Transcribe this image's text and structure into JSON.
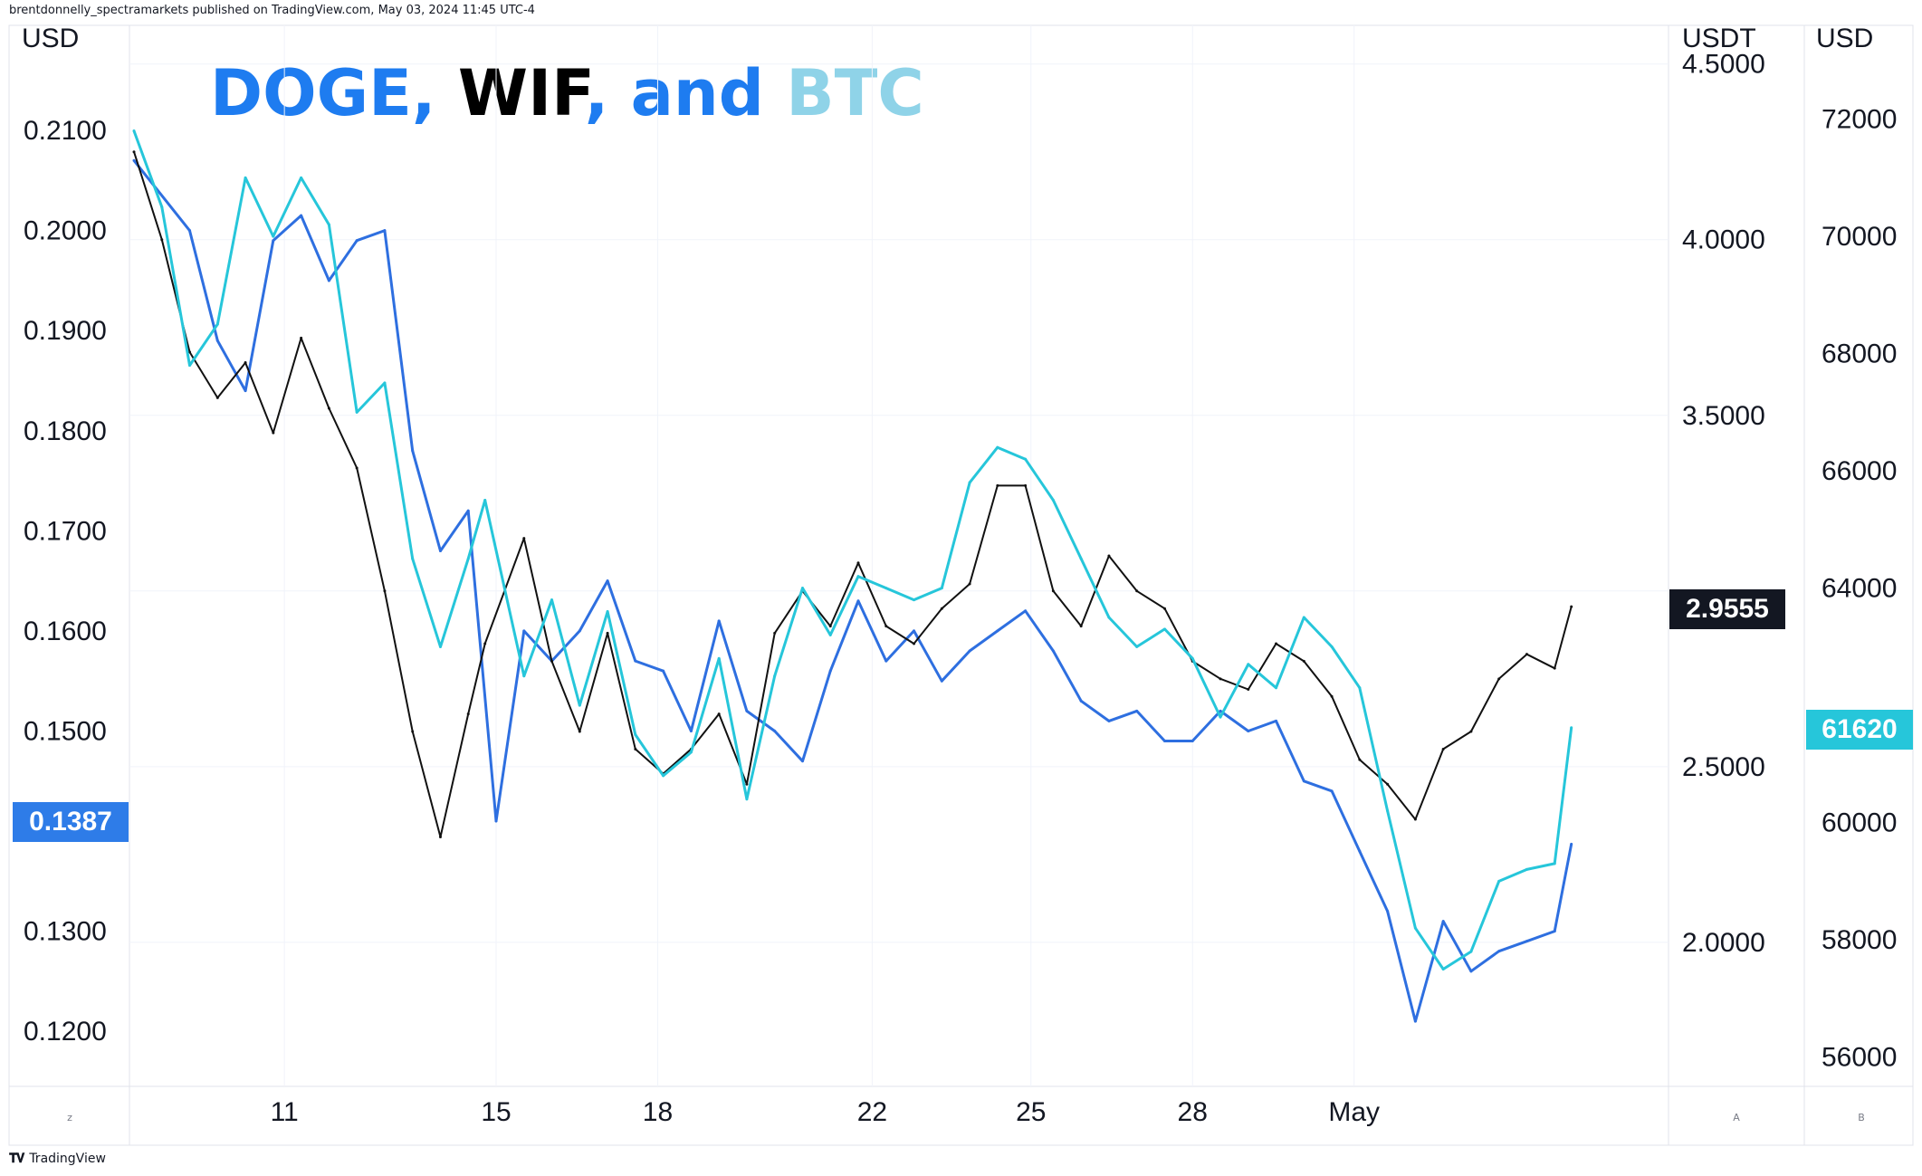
{
  "header": {
    "attribution": "brentdonnelly_spectramarkets published on TradingView.com, May 03, 2024 11:45 UTC-4"
  },
  "footer": {
    "brand": "TradingView"
  },
  "title_parts": [
    {
      "text": "DOGE",
      "color": "#1e7cf0"
    },
    {
      "text": ", ",
      "color": "#1e7cf0"
    },
    {
      "text": "WIF",
      "color": "#000000"
    },
    {
      "text": ", and ",
      "color": "#1e7cf0"
    },
    {
      "text": "BTC",
      "color": "#8fd3e8"
    }
  ],
  "axes": {
    "left_unit": "USD",
    "mid_unit": "USDT",
    "right_unit": "USD",
    "left_ticks": [
      "0.2100",
      "0.2000",
      "0.1900",
      "0.1800",
      "0.1700",
      "0.1600",
      "0.1500",
      "0.1300",
      "0.1200"
    ],
    "mid_ticks": [
      "4.5000",
      "4.0000",
      "3.5000",
      "2.5000",
      "2.0000"
    ],
    "right_ticks": [
      "72000",
      "70000",
      "68000",
      "66000",
      "64000",
      "60000",
      "58000",
      "56000"
    ],
    "x_ticks": [
      "11",
      "15",
      "18",
      "22",
      "25",
      "28",
      "May"
    ],
    "mini_buttons": {
      "left": "z",
      "mid": "A",
      "right": "B"
    }
  },
  "badges": {
    "doge": {
      "text": "0.1387",
      "color": "#2e7ce8"
    },
    "wif": {
      "text": "2.9555",
      "color": "#131722"
    },
    "btc": {
      "text": "61620",
      "color": "#26c6da"
    }
  },
  "chart_data": {
    "type": "line",
    "title": "DOGE, WIF, and BTC",
    "x_labels": [
      "11",
      "15",
      "18",
      "22",
      "25",
      "28",
      "May"
    ],
    "series": [
      {
        "name": "DOGE",
        "unit": "USD",
        "color": "#2e6fe0",
        "ylim": [
          0.1145,
          0.2205
        ],
        "x": [
          0,
          1,
          1.5,
          2,
          2.5,
          3,
          3.5,
          4,
          4.5,
          5,
          5.5,
          6,
          6.5,
          7,
          7.5,
          8,
          8.5,
          9,
          9.5,
          10,
          10.5,
          11,
          11.5,
          12,
          12.5,
          13,
          13.5,
          14,
          14.5,
          15,
          15.5,
          16,
          16.5,
          17,
          17.5,
          18,
          18.5,
          19,
          19.5,
          20,
          20.5,
          21,
          21.5,
          22,
          22.5,
          23,
          23.5,
          24,
          24.5,
          25,
          25.5,
          25.8
        ],
        "values": [
          0.207,
          0.2,
          0.189,
          0.184,
          0.199,
          0.2015,
          0.195,
          0.199,
          0.2,
          0.178,
          0.168,
          0.172,
          0.141,
          0.16,
          0.157,
          0.16,
          0.165,
          0.157,
          0.156,
          0.15,
          0.161,
          0.152,
          0.15,
          0.147,
          0.156,
          0.163,
          0.157,
          0.16,
          0.155,
          0.158,
          0.16,
          0.162,
          0.158,
          0.153,
          0.151,
          0.152,
          0.149,
          0.149,
          0.152,
          0.15,
          0.151,
          0.145,
          0.144,
          0.138,
          0.132,
          0.121,
          0.131,
          0.126,
          0.128,
          0.129,
          0.13,
          0.1387
        ]
      },
      {
        "name": "WIF",
        "unit": "USDT",
        "color": "#111111",
        "ylim": [
          1.59,
          4.61
        ],
        "x": [
          0,
          0.5,
          1,
          1.5,
          2,
          2.5,
          3,
          3.5,
          4,
          4.5,
          5,
          5.5,
          6,
          6.3,
          7,
          7.5,
          8,
          8.5,
          9,
          9.5,
          10,
          10.5,
          11,
          11.5,
          12,
          12.5,
          13,
          13.5,
          14,
          14.5,
          15,
          15.5,
          16,
          16.5,
          17,
          17.5,
          18,
          18.5,
          19,
          19.5,
          20,
          20.5,
          21,
          21.5,
          22,
          22.5,
          23,
          23.5,
          24,
          24.5,
          25,
          25.5,
          25.8
        ],
        "values": [
          4.25,
          4.0,
          3.68,
          3.55,
          3.65,
          3.45,
          3.72,
          3.52,
          3.35,
          3.0,
          2.6,
          2.3,
          2.65,
          2.85,
          3.15,
          2.8,
          2.6,
          2.88,
          2.55,
          2.48,
          2.55,
          2.65,
          2.45,
          2.88,
          3.0,
          2.9,
          3.08,
          2.9,
          2.85,
          2.95,
          3.02,
          3.3,
          3.3,
          3.0,
          2.9,
          3.1,
          3.0,
          2.95,
          2.8,
          2.75,
          2.72,
          2.85,
          2.8,
          2.7,
          2.52,
          2.45,
          2.35,
          2.55,
          2.6,
          2.75,
          2.82,
          2.78,
          2.9555
        ]
      },
      {
        "name": "BTC",
        "unit": "USD",
        "color": "#26c6da",
        "ylim": [
          55500,
          73600
        ],
        "x": [
          0,
          0.5,
          1,
          1.5,
          2,
          2.5,
          3,
          3.5,
          4,
          4.5,
          5,
          5.5,
          6,
          6.3,
          7,
          7.5,
          8,
          8.5,
          9,
          9.5,
          10,
          10.5,
          11,
          11.5,
          12,
          12.5,
          13,
          13.5,
          14,
          14.5,
          15,
          15.5,
          16,
          16.5,
          17,
          17.5,
          18,
          18.5,
          19,
          19.5,
          20,
          20.5,
          21,
          21.5,
          22,
          22.5,
          23,
          23.5,
          24,
          24.5,
          25,
          25.5,
          25.8
        ],
        "values": [
          71800,
          70500,
          67800,
          68500,
          71000,
          70000,
          71000,
          70200,
          67000,
          67500,
          64500,
          63000,
          64500,
          65500,
          62500,
          63800,
          62000,
          63600,
          61500,
          60800,
          61200,
          62800,
          60400,
          62500,
          64000,
          63200,
          64200,
          64000,
          63800,
          64000,
          65800,
          66400,
          66200,
          65500,
          64500,
          63500,
          63000,
          63300,
          62800,
          61800,
          62700,
          62300,
          63500,
          63000,
          62300,
          60200,
          58200,
          57500,
          57800,
          59000,
          59200,
          59300,
          61620
        ]
      }
    ]
  }
}
